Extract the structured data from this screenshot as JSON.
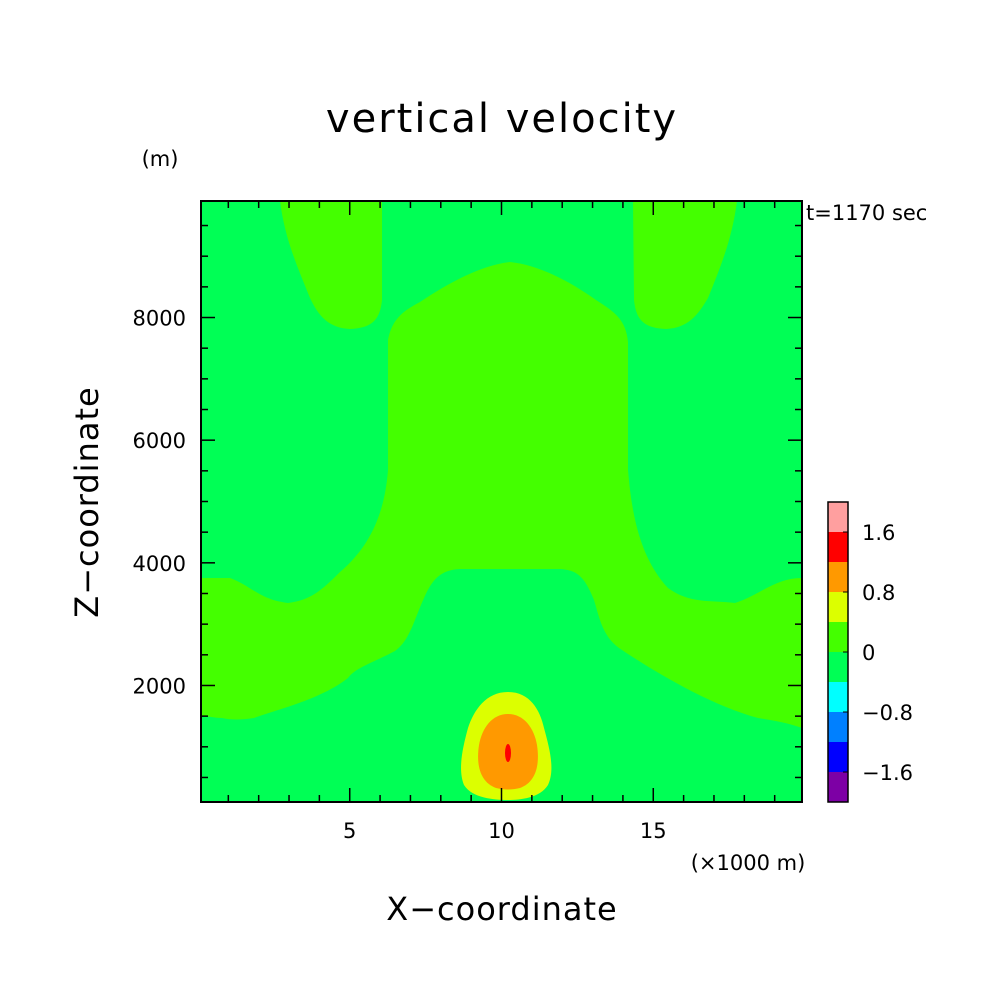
{
  "chart_data": {
    "type": "heatmap",
    "title": "vertical velocity",
    "xlabel": "X−coordinate",
    "ylabel": "Z−coordinate",
    "x_unit": "(×1000 m)",
    "y_unit": "(m)",
    "time_label": "t=1170 sec",
    "xlim": [
      0.1,
      19.9
    ],
    "ylim": [
      100,
      9900
    ],
    "x_ticks": [
      5,
      10,
      15
    ],
    "y_ticks": [
      2000,
      4000,
      6000,
      8000
    ],
    "colorbar": {
      "levels": [
        -2.0,
        -1.6,
        -1.2,
        -0.8,
        -0.4,
        0,
        0.4,
        0.8,
        1.2,
        1.6,
        2.0
      ],
      "colors": [
        "#7d00a5",
        "#0000ff",
        "#0080ff",
        "#00ffff",
        "#00ff55",
        "#44ff00",
        "#dcff00",
        "#ff9900",
        "#ff0000",
        "#ff9f9f"
      ],
      "tick_labels": [
        "−1.6",
        "−0.8",
        "0",
        "0.8",
        "1.6"
      ]
    },
    "regions": [
      {
        "level": "0 to 0.4",
        "description": "central upper plume"
      },
      {
        "level": "0 to 0.4",
        "description": "left-top lobe"
      },
      {
        "level": "0 to 0.4",
        "description": "right-top lobe"
      },
      {
        "level": "0 to 0.4",
        "description": "lower wing band"
      },
      {
        "level": "0.4 to 0.8",
        "description": "low-level updraft"
      },
      {
        "level": "0.8 to 1.2",
        "description": "updraft core"
      },
      {
        "level": "1.2 to 1.6",
        "description": "updraft peak"
      }
    ]
  }
}
